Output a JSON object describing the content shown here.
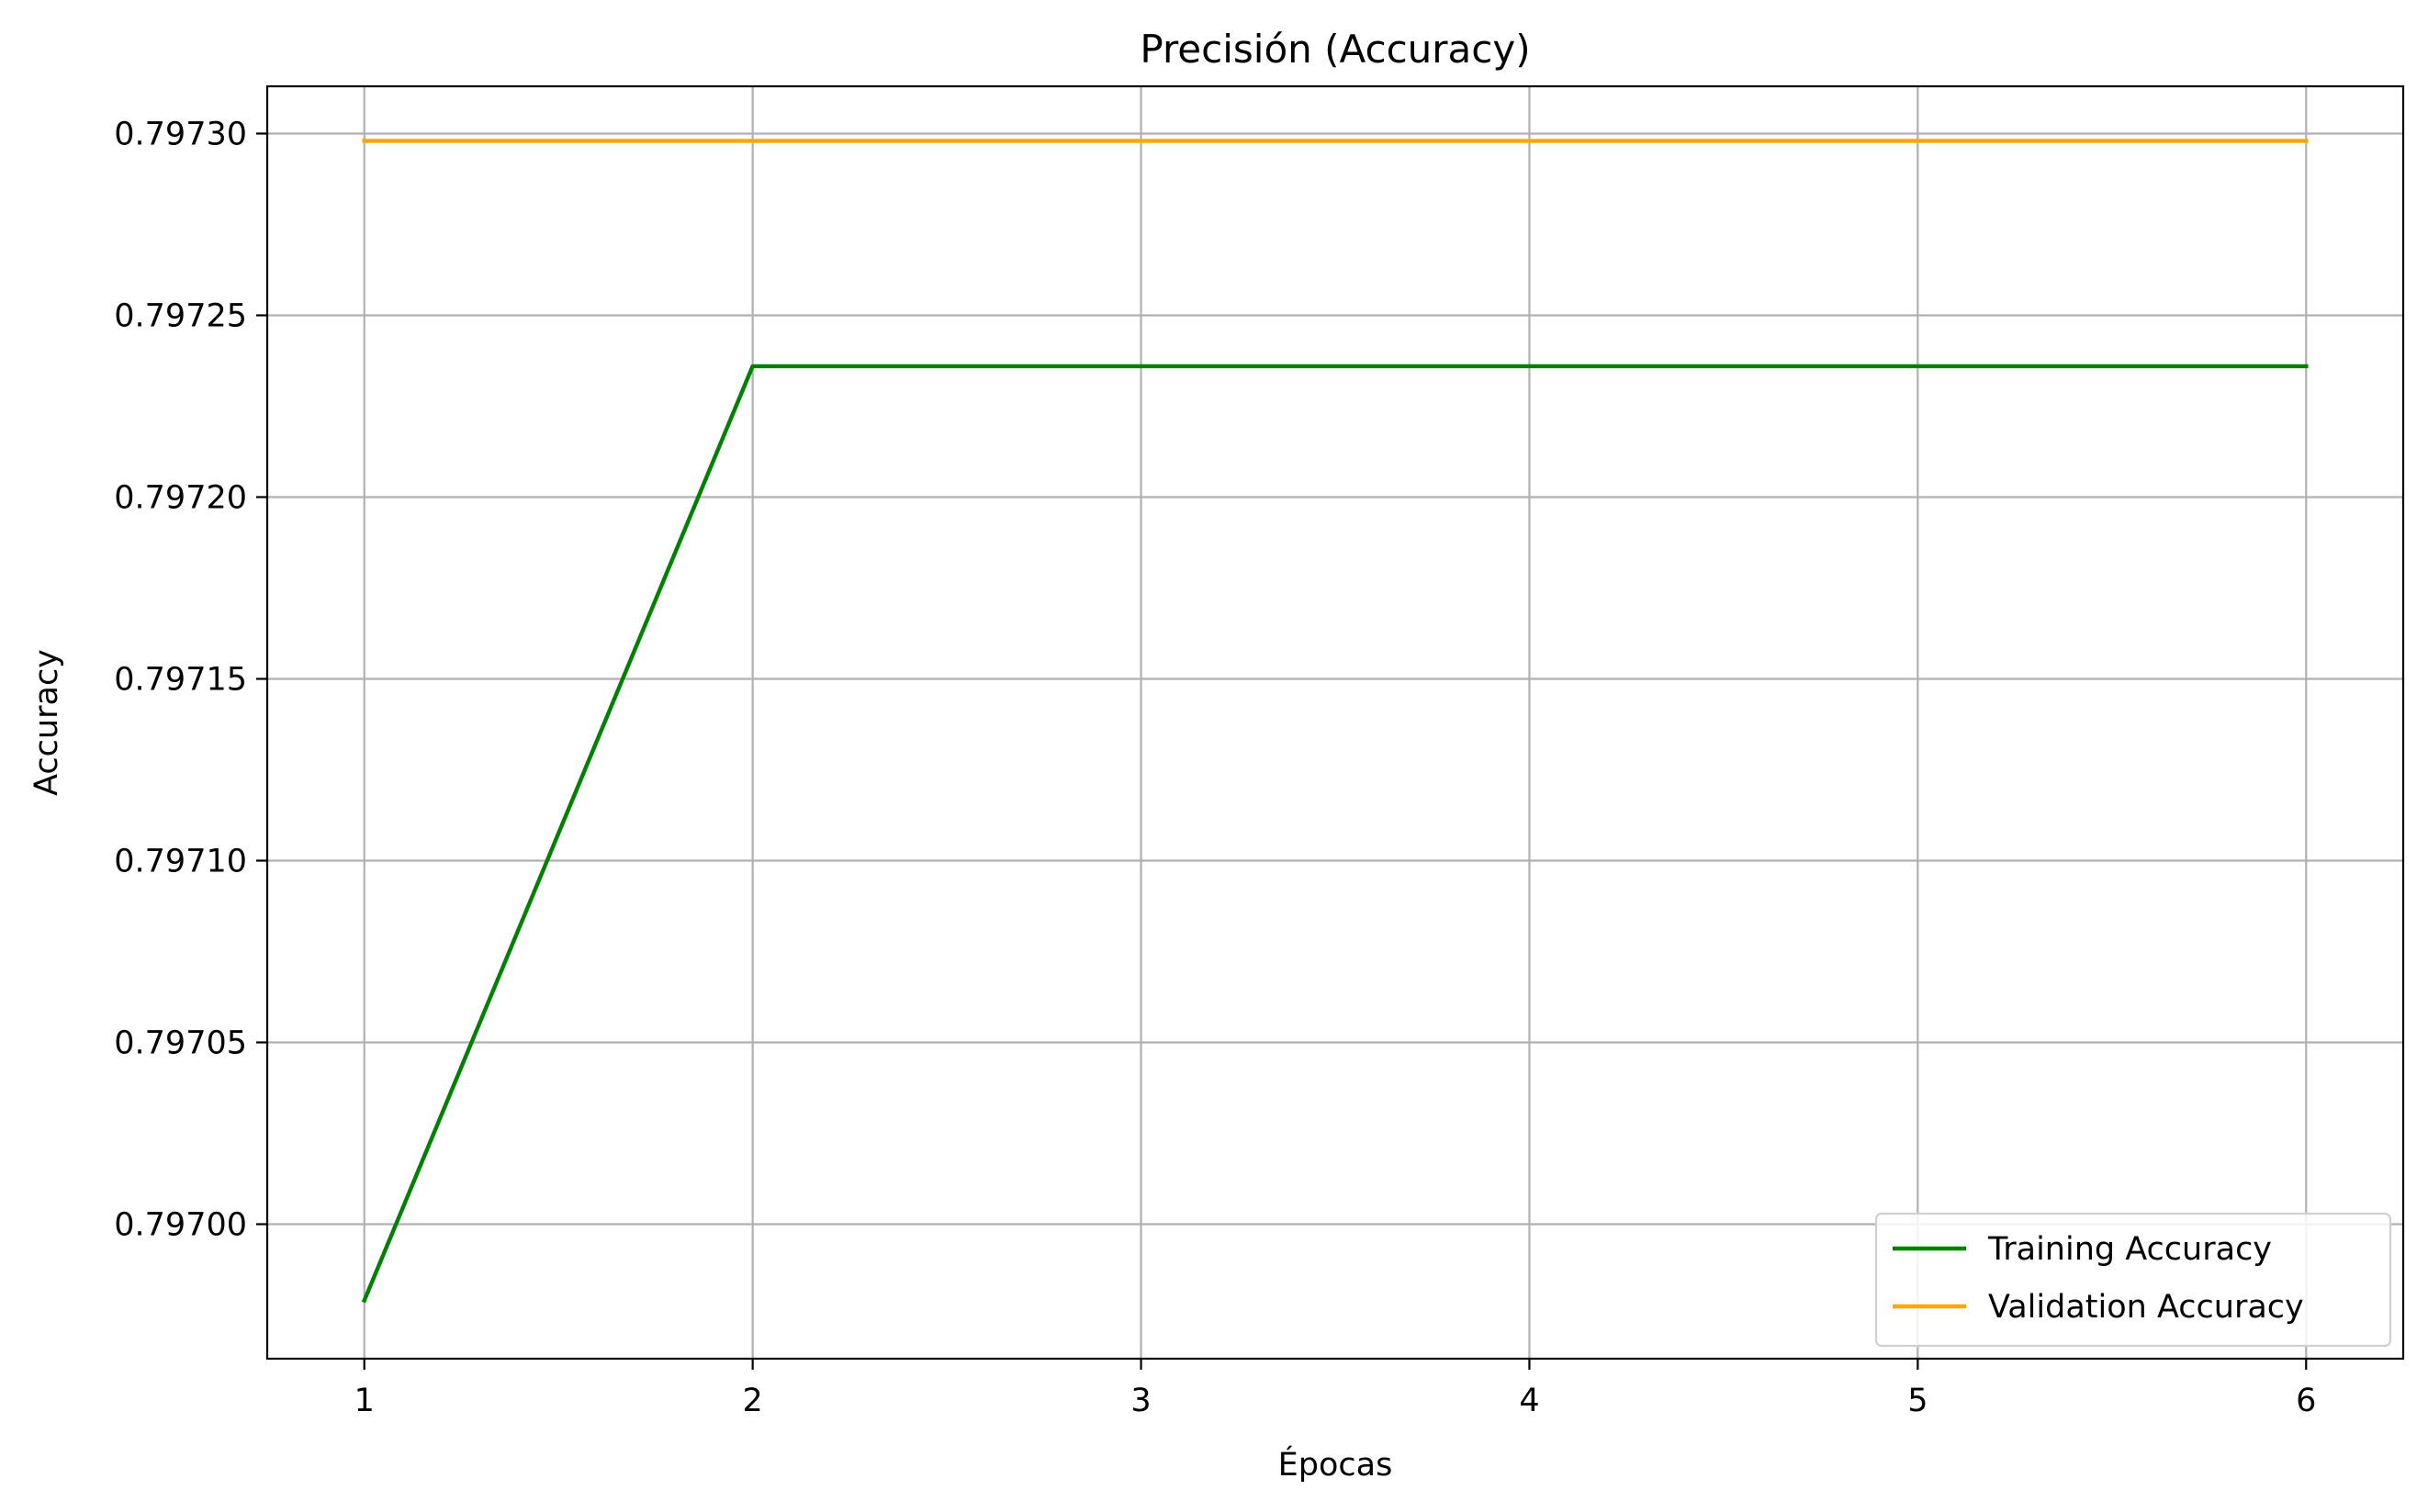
{
  "chart_data": {
    "type": "line",
    "title": "Precisión (Accuracy)",
    "xlabel": "Épocas",
    "ylabel": "Accuracy",
    "x": [
      1,
      2,
      3,
      4,
      5,
      6
    ],
    "xlim": [
      0.75,
      6.25
    ],
    "ylim": [
      0.796963,
      0.797313
    ],
    "x_ticks": [
      1,
      2,
      3,
      4,
      5,
      6
    ],
    "x_tick_labels": [
      "1",
      "2",
      "3",
      "4",
      "5",
      "6"
    ],
    "y_ticks": [
      0.797,
      0.79705,
      0.7971,
      0.79715,
      0.7972,
      0.79725,
      0.7973
    ],
    "y_tick_labels": [
      "0.79700",
      "0.79705",
      "0.79710",
      "0.79715",
      "0.79720",
      "0.79725",
      "0.79730"
    ],
    "grid": true,
    "legend_position": "lower right",
    "series": [
      {
        "name": "Training Accuracy",
        "color": "#008000",
        "values": [
          0.796979,
          0.797236,
          0.797236,
          0.797236,
          0.797236,
          0.797236
        ]
      },
      {
        "name": "Validation Accuracy",
        "color": "#FFA500",
        "values": [
          0.797298,
          0.797298,
          0.797298,
          0.797298,
          0.797298,
          0.797298
        ]
      }
    ]
  }
}
